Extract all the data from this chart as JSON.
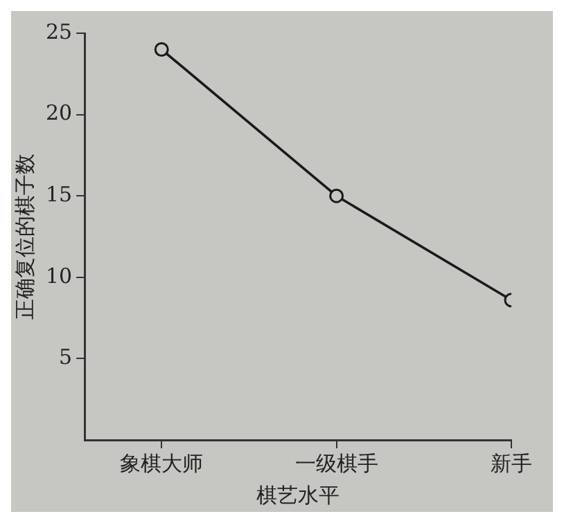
{
  "chart_data": {
    "type": "line",
    "xlabel": "棋艺水平",
    "ylabel": "正确复位的棋子数",
    "categories": [
      "象棋大师",
      "一级棋手",
      "新手"
    ],
    "series": [
      {
        "color": "#1a1a1a",
        "values": [
          24,
          15,
          8.6
        ]
      }
    ],
    "ylim": [
      0,
      25
    ],
    "yticks": [
      5,
      10,
      15,
      20,
      25
    ],
    "marker": "circle",
    "line_style": "solid",
    "legend": false
  }
}
